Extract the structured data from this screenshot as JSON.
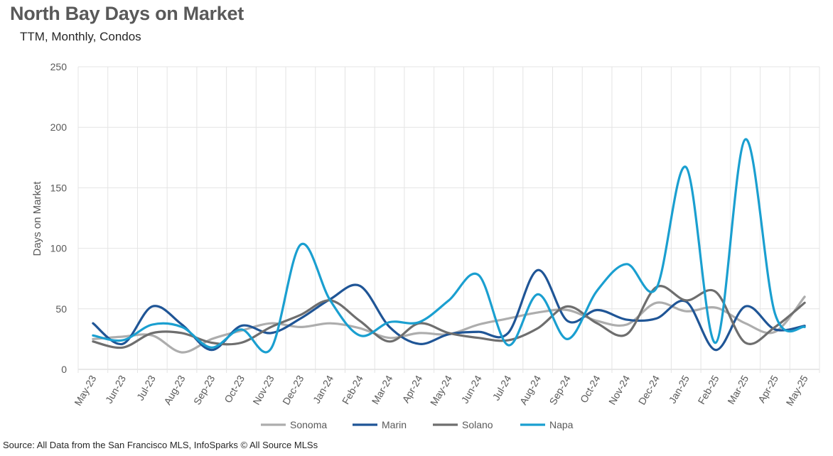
{
  "chart_data": {
    "type": "line",
    "title": "North Bay Days on Market",
    "subtitle": "TTM, Monthly, Condos",
    "xlabel": "",
    "ylabel": "Days on Market",
    "ylim": [
      0,
      250
    ],
    "yticks": [
      0,
      50,
      100,
      150,
      200,
      250
    ],
    "grid": "vertical and horizontal",
    "legend_position": "bottom",
    "categories": [
      "May-23",
      "Jun-23",
      "Jul-23",
      "Aug-23",
      "Sep-23",
      "Oct-23",
      "Nov-23",
      "Dec-23",
      "Jan-24",
      "Feb-24",
      "Mar-24",
      "Apr-24",
      "May-24",
      "Jun-24",
      "Jul-24",
      "Aug-24",
      "Sep-24",
      "Oct-24",
      "Nov-24",
      "Dec-24",
      "Jan-25",
      "Feb-25",
      "Mar-25",
      "Apr-25",
      "May-25"
    ],
    "series": [
      {
        "name": "Sonoma",
        "color": "#ADADAD",
        "values": [
          25,
          27,
          28,
          14,
          25,
          32,
          38,
          35,
          38,
          34,
          26,
          30,
          29,
          37,
          42,
          47,
          49,
          40,
          37,
          55,
          48,
          51,
          38,
          31,
          60
        ]
      },
      {
        "name": "Marin",
        "color": "#1F5596",
        "values": [
          38,
          21,
          52,
          37,
          16,
          36,
          30,
          42,
          58,
          69,
          35,
          21,
          29,
          31,
          30,
          82,
          40,
          49,
          41,
          42,
          56,
          16,
          52,
          33,
          36
        ]
      },
      {
        "name": "Solano",
        "color": "#6E6E6E",
        "values": [
          23,
          18,
          30,
          30,
          22,
          22,
          35,
          45,
          57,
          40,
          23,
          38,
          30,
          26,
          24,
          34,
          52,
          38,
          29,
          68,
          57,
          64,
          22,
          35,
          55
        ]
      },
      {
        "name": "Napa",
        "color": "#1A9FD0",
        "values": [
          28,
          24,
          37,
          35,
          18,
          33,
          17,
          103,
          57,
          28,
          39,
          39,
          57,
          78,
          20,
          62,
          25,
          65,
          87,
          67,
          167,
          22,
          190,
          46,
          35
        ]
      }
    ]
  },
  "source": "Source: All Data from the San Francisco MLS, InfoSparks © All Source MLSs"
}
